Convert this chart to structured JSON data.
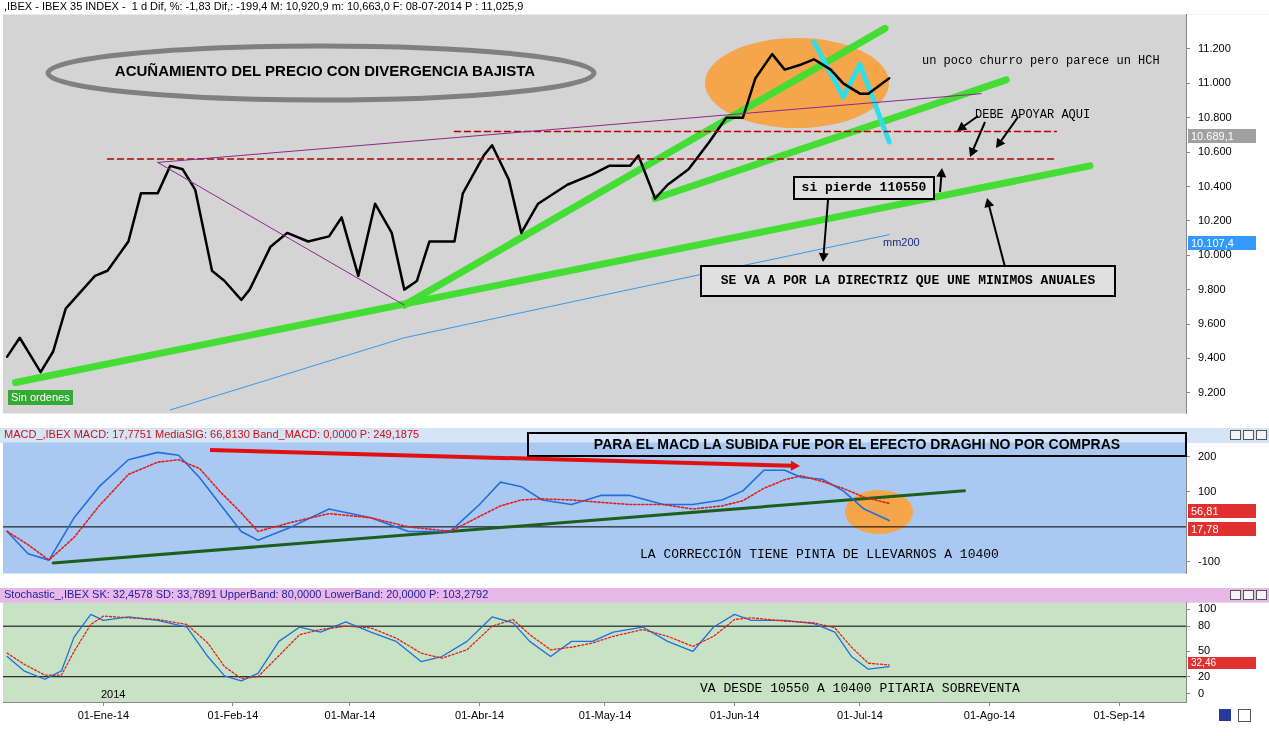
{
  "chart_data": [
    {
      "type": "line",
      "title": ",IBEX - IBEX 35 INDEX -  1 d Dif, %: -1,83 Dif,: -199,4 M: 10,920,9 m: 10,663,0 F: 08-07-2014 P : 11,025,9",
      "xlim": [
        "2013-12-08",
        "2014-09-17"
      ],
      "ylim": [
        9080,
        11400
      ],
      "yticks": [
        {
          "value": 9200,
          "label": "9.200"
        },
        {
          "value": 9400,
          "label": "9.400"
        },
        {
          "value": 9600,
          "label": "9.600"
        },
        {
          "value": 9800,
          "label": "9.800"
        },
        {
          "value": 10000,
          "label": "10.000"
        },
        {
          "value": 10200,
          "label": "10.200"
        },
        {
          "value": 10400,
          "label": "10.400"
        },
        {
          "value": 10600,
          "label": "10.600"
        },
        {
          "value": 10800,
          "label": "10.800"
        },
        {
          "value": 11000,
          "label": "11.000"
        },
        {
          "value": 11200,
          "label": "11.200"
        }
      ],
      "tick_labels": "y",
      "legend": false,
      "marker": "none",
      "series": [
        {
          "color": "#000000",
          "x": [
            "2013-12-09",
            "2013-12-12",
            "2013-12-17",
            "2013-12-20",
            "2013-12-23",
            "2013-12-30",
            "2014-01-02",
            "2014-01-07",
            "2014-01-10",
            "2014-01-14",
            "2014-01-17",
            "2014-01-20",
            "2014-01-23",
            "2014-01-27",
            "2014-01-30",
            "2014-02-03",
            "2014-02-05",
            "2014-02-10",
            "2014-02-14",
            "2014-02-19",
            "2014-02-24",
            "2014-02-27",
            "2014-03-03",
            "2014-03-07",
            "2014-03-11",
            "2014-03-14",
            "2014-03-17",
            "2014-03-20",
            "2014-03-26",
            "2014-03-28",
            "2014-04-02",
            "2014-04-04",
            "2014-04-08",
            "2014-04-11",
            "2014-04-15",
            "2014-04-22",
            "2014-04-28",
            "2014-05-02",
            "2014-05-07",
            "2014-05-09",
            "2014-05-13",
            "2014-05-16",
            "2014-05-21",
            "2014-05-26",
            "2014-05-30",
            "2014-06-03",
            "2014-06-06",
            "2014-06-10",
            "2014-06-13",
            "2014-06-17",
            "2014-06-20",
            "2014-06-24",
            "2014-06-27",
            "2014-07-01",
            "2014-07-03",
            "2014-07-08"
          ],
          "values": [
            9410,
            9520,
            9320,
            9440,
            9690,
            9880,
            9910,
            10080,
            10360,
            10360,
            10520,
            10500,
            10380,
            9910,
            9850,
            9740,
            9800,
            10050,
            10130,
            10080,
            10110,
            10220,
            9880,
            10300,
            10130,
            9800,
            9850,
            10080,
            10080,
            10360,
            10580,
            10640,
            10440,
            10130,
            10300,
            10410,
            10470,
            10520,
            10520,
            10580,
            10330,
            10410,
            10500,
            10660,
            10800,
            10800,
            11030,
            11170,
            11080,
            11110,
            11140,
            11080,
            11000,
            10940,
            10940,
            11030
          ]
        },
        {
          "color": "#3399ee",
          "x": [
            "2014-01-17",
            "2014-03-14",
            "2014-05-01",
            "2014-07-08"
          ],
          "values": [
            9100,
            9520,
            9770,
            10120
          ]
        },
        {
          "color": "#44dd33",
          "x": [
            "2013-12-11",
            "2014-08-25"
          ],
          "values": [
            9260,
            10520
          ]
        },
        {
          "color": "#44dd33",
          "x": [
            "2014-03-14",
            "2014-07-07"
          ],
          "values": [
            9710,
            11320
          ]
        },
        {
          "color": "#44dd33",
          "x": [
            "2014-05-13",
            "2014-08-05"
          ],
          "values": [
            10330,
            11020
          ]
        },
        {
          "color": "#8a2a8a",
          "x": [
            "2014-01-14",
            "2014-03-14"
          ],
          "values": [
            10540,
            9710
          ]
        },
        {
          "color": "#8a2a8a",
          "x": [
            "2014-01-14",
            "2014-07-30"
          ],
          "values": [
            10540,
            10940
          ]
        },
        {
          "color": "#b00000",
          "line_style": "dashed",
          "x": [
            "2014-01-02",
            "2014-08-17"
          ],
          "values": [
            10560,
            10560
          ]
        },
        {
          "color": "#b00000",
          "line_style": "dashed",
          "x": [
            "2014-03-26",
            "2014-08-17"
          ],
          "values": [
            10720,
            10720
          ]
        },
        {
          "color": "#33dde8",
          "x": [
            "2014-06-20",
            "2014-06-27",
            "2014-07-01",
            "2014-07-08"
          ],
          "values": [
            11240,
            10920,
            11110,
            10660
          ]
        }
      ],
      "annotations": [
        "ACUÑAMIENTO DEL PRECIO CON DIVERGENCIA BAJISTA",
        "un poco churro pero parece un HCH",
        "DEBE APOYAR AQUI",
        "si pierde 110550",
        "SE VA A POR LA DIRECTRIZ QUE UNE MINIMOS ANUALES",
        "Sin ordenes",
        "mm200",
        "10.689,1",
        "10.107,4"
      ]
    },
    {
      "type": "line",
      "title": "MACD_,IBEX MACD: 17,7751 MediaSIG: 66,8130 Band_MACD: 0,0000 P: 249,1875",
      "xlim": [
        "2013-12-08",
        "2014-09-17"
      ],
      "ylim": [
        -133,
        241
      ],
      "yticks": [
        -100,
        100,
        200
      ],
      "tick_labels": "y",
      "legend": false,
      "marker": "none",
      "x": [
        "2013-12-09",
        "2013-12-14",
        "2013-12-19",
        "2013-12-25",
        "2013-12-31",
        "2014-01-07",
        "2014-01-14",
        "2014-01-19",
        "2014-01-24",
        "2014-01-29",
        "2014-02-03",
        "2014-02-07",
        "2014-02-15",
        "2014-02-24",
        "2014-03-06",
        "2014-03-15",
        "2014-03-25",
        "2014-04-01",
        "2014-04-06",
        "2014-04-11",
        "2014-04-16",
        "2014-04-23",
        "2014-04-30",
        "2014-05-07",
        "2014-05-15",
        "2014-05-22",
        "2014-05-29",
        "2014-06-03",
        "2014-06-08",
        "2014-06-13",
        "2014-06-17",
        "2014-06-22",
        "2014-06-27",
        "2014-07-02",
        "2014-07-08"
      ],
      "series": [
        {
          "color": "#1f6fe0",
          "values": [
            -13,
            -77,
            -95,
            26,
            115,
            192,
            213,
            205,
            141,
            64,
            -13,
            -38,
            0,
            51,
            26,
            -13,
            -13,
            64,
            128,
            115,
            77,
            64,
            90,
            90,
            64,
            64,
            77,
            103,
            162,
            162,
            141,
            136,
            103,
            51,
            18
          ]
        },
        {
          "color": "#e02020",
          "line_style": "dotted",
          "values": [
            -13,
            -51,
            -95,
            -30,
            60,
            150,
            185,
            192,
            167,
            100,
            40,
            -13,
            13,
            38,
            26,
            0,
            -13,
            30,
            60,
            77,
            80,
            77,
            70,
            64,
            64,
            51,
            60,
            75,
            110,
            135,
            146,
            130,
            110,
            85,
            67
          ]
        },
        {
          "color": "#1d5e1d",
          "x": [
            "2013-12-20",
            "2014-07-26"
          ],
          "values": [
            -103,
            103
          ]
        }
      ],
      "ref_lines": [
        {
          "axis": "y",
          "value": 0,
          "color": "#000000"
        }
      ],
      "annotations": [
        "PARA EL MACD LA SUBIDA FUE POR EL EFECTO DRAGHI NO POR COMPRAS",
        "LA CORRECCIÓN TIENE PINTA DE LLEVARNOS A 10400",
        "56,81",
        "17,78"
      ]
    },
    {
      "type": "line",
      "title": "Stochastic_,IBEX SK: 32,4578 SD: 33,7891 UpperBand: 80,0000 LowerBand: 20,0000 P: 103,2792",
      "xlim": [
        "2013-12-08",
        "2014-09-17"
      ],
      "xticks": [
        {
          "value": "2014-01-01",
          "label": "01-Ene-14"
        },
        {
          "value": "2014-02-01",
          "label": "01-Feb-14"
        },
        {
          "value": "2014-03-01",
          "label": "01-Mar-14"
        },
        {
          "value": "2014-04-01",
          "label": "01-Abr-14"
        },
        {
          "value": "2014-05-01",
          "label": "01-May-14"
        },
        {
          "value": "2014-06-01",
          "label": "01-Jun-14"
        },
        {
          "value": "2014-07-01",
          "label": "01-Jul-14"
        },
        {
          "value": "2014-08-01",
          "label": "01-Ago-14"
        },
        {
          "value": "2014-09-01",
          "label": "01-Sep-14"
        }
      ],
      "ylim": [
        -10,
        108
      ],
      "yticks": [
        0,
        20,
        50,
        80,
        100
      ],
      "legend": false,
      "marker": "none",
      "x": [
        "2013-12-09",
        "2013-12-13",
        "2013-12-18",
        "2013-12-22",
        "2013-12-25",
        "2013-12-29",
        "2014-01-01",
        "2014-01-07",
        "2014-01-14",
        "2014-01-21",
        "2014-01-26",
        "2014-01-30",
        "2014-02-03",
        "2014-02-07",
        "2014-02-12",
        "2014-02-17",
        "2014-02-22",
        "2014-02-28",
        "2014-03-06",
        "2014-03-12",
        "2014-03-18",
        "2014-03-23",
        "2014-03-29",
        "2014-04-04",
        "2014-04-09",
        "2014-04-13",
        "2014-04-18",
        "2014-04-23",
        "2014-04-28",
        "2014-05-03",
        "2014-05-10",
        "2014-05-16",
        "2014-05-22",
        "2014-05-27",
        "2014-06-01",
        "2014-06-05",
        "2014-06-13",
        "2014-06-20",
        "2014-06-25",
        "2014-06-29",
        "2014-07-03",
        "2014-07-08"
      ],
      "series": [
        {
          "color": "#1f6fe0",
          "values": [
            44,
            27,
            17,
            27,
            67,
            94,
            87,
            91,
            87,
            79,
            44,
            21,
            15,
            24,
            62,
            79,
            73,
            85,
            73,
            62,
            38,
            44,
            62,
            91,
            84,
            62,
            44,
            62,
            62,
            73,
            79,
            62,
            50,
            79,
            94,
            87,
            87,
            83,
            73,
            44,
            29,
            32
          ]
        },
        {
          "color": "#e02020",
          "line_style": "dotted",
          "values": [
            48,
            35,
            22,
            22,
            50,
            82,
            92,
            90,
            88,
            82,
            60,
            32,
            18,
            20,
            45,
            70,
            76,
            80,
            78,
            66,
            48,
            42,
            52,
            80,
            88,
            70,
            52,
            55,
            60,
            68,
            76,
            68,
            56,
            68,
            88,
            90,
            86,
            84,
            78,
            55,
            36,
            34
          ]
        }
      ],
      "ref_lines": [
        {
          "axis": "y",
          "value": 80,
          "color": "#000000"
        },
        {
          "axis": "y",
          "value": 20,
          "color": "#000000"
        }
      ],
      "annotations": [
        "VA DESDE 10550 A 10400 PITARIA SOBREVENTA",
        "2014",
        "32,46"
      ]
    }
  ]
}
